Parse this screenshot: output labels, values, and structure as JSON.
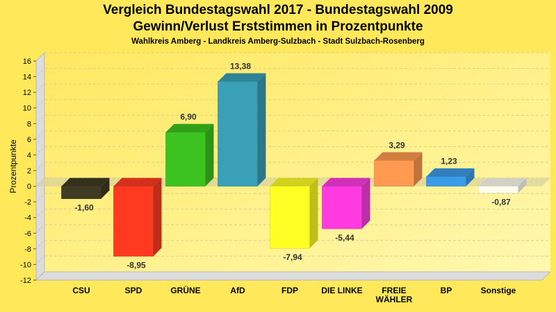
{
  "chart_data": {
    "type": "bar",
    "title": "Vergleich Bundestagswahl 2017 - Bundestagswahl 2009",
    "subtitle": "Gewinn/Verlust Erststimmen in Prozentpunkte",
    "subtitle2": "Wahlkreis Amberg - Landkreis Amberg-Sulzbach - Stadt Sulzbach-Rosenberg",
    "ylabel": "Prozentpunkte",
    "xlabel": "",
    "ylim": [
      -12,
      16
    ],
    "yticks": [
      -12,
      -10,
      -8,
      -6,
      -4,
      -2,
      0,
      2,
      4,
      6,
      8,
      10,
      12,
      14,
      16
    ],
    "grid": true,
    "categories": [
      [
        "CSU"
      ],
      [
        "SPD"
      ],
      [
        "GRÜNE"
      ],
      [
        "AfD"
      ],
      [
        "FDP"
      ],
      [
        "DIE LINKE"
      ],
      [
        "FREIE",
        "WÄHLER"
      ],
      [
        "BP"
      ],
      [
        "Sonstige"
      ]
    ],
    "values": [
      -1.6,
      -8.95,
      6.9,
      13.38,
      -7.94,
      -5.44,
      3.29,
      1.23,
      -0.87
    ],
    "labels": [
      "-1,60",
      "-8,95",
      "6,90",
      "13,38",
      "-7,94",
      "-5,44",
      "3,29",
      "1,23",
      "-0,87"
    ],
    "colors": [
      "#3f3a22",
      "#ff3a20",
      "#3dc31f",
      "#3aa0b8",
      "#ffff24",
      "#ff3ae0",
      "#ff9a50",
      "#3a9ce8",
      "#fffff0"
    ]
  }
}
